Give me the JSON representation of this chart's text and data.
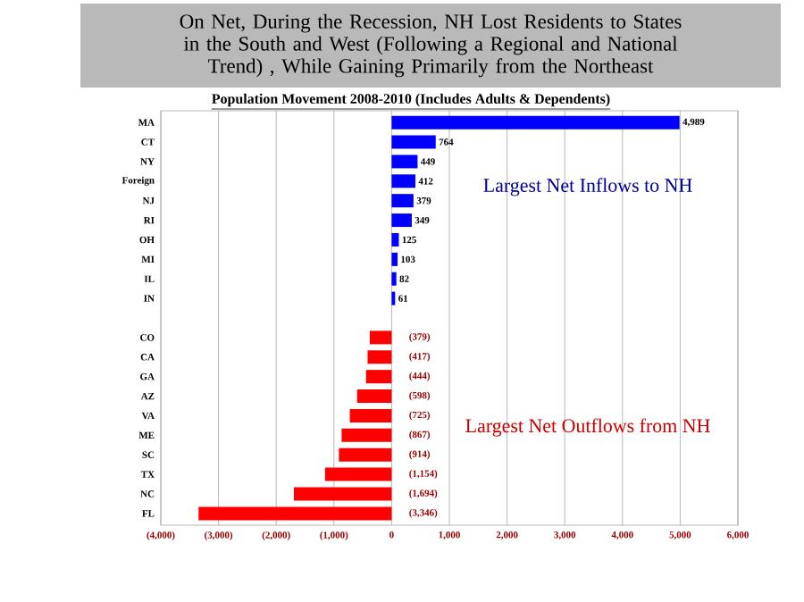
{
  "chart_data": {
    "type": "bar",
    "orientation": "horizontal",
    "title": "On Net, During the Recession, NH Lost Residents to States in the South and West (Following a Regional and National Trend) , While Gaining Primarily from the Northeast",
    "subtitle": "Population Movement 2008-2010 (Includes Adults & Dependents)",
    "categories": [
      "MA",
      "CT",
      "NY",
      "Foreign",
      "NJ",
      "RI",
      "OH",
      "MI",
      "IL",
      "IN",
      null,
      "CO",
      "CA",
      "GA",
      "AZ",
      "VA",
      "ME",
      "SC",
      "TX",
      "NC",
      "FL"
    ],
    "values": [
      4989,
      764,
      449,
      412,
      379,
      349,
      125,
      103,
      82,
      61,
      null,
      -379,
      -417,
      -444,
      -598,
      -725,
      -867,
      -914,
      -1154,
      -1694,
      -3346
    ],
    "value_labels": [
      "4,989",
      "764",
      "449",
      "412",
      "379",
      "349",
      "125",
      "103",
      "82",
      "61",
      null,
      "(379)",
      "(417)",
      "(444)",
      "(598)",
      "(725)",
      "(867)",
      "(914)",
      "(1,154)",
      "(1,694)",
      "(3,346)"
    ],
    "colors": [
      "#0000ff",
      "#0000ff",
      "#0000ff",
      "#0000ff",
      "#0000ff",
      "#0000ff",
      "#0000ff",
      "#0000ff",
      "#0000ff",
      "#0000ff",
      null,
      "#ff0000",
      "#ff0000",
      "#ff0000",
      "#ff0000",
      "#ff0000",
      "#ff0000",
      "#ff0000",
      "#ff0000",
      "#ff0000",
      "#ff0000"
    ],
    "xlim": [
      -4000,
      6000
    ],
    "xticks": [
      {
        "value": -4000,
        "label": "(4,000)"
      },
      {
        "value": -3000,
        "label": "(3,000)"
      },
      {
        "value": -2000,
        "label": "(2,000)"
      },
      {
        "value": -1000,
        "label": "(1,000)"
      },
      0,
      {
        "value": 1000,
        "label": "1,000"
      },
      {
        "value": 2000,
        "label": "2,000"
      },
      {
        "value": 3000,
        "label": "3,000"
      },
      {
        "value": 4000,
        "label": "4,000"
      },
      {
        "value": 5000,
        "label": "5,000"
      },
      {
        "value": 6000,
        "label": "6,000"
      }
    ],
    "grid": "x",
    "annotations": [
      "Largest Net Inflows to NH",
      "Largest Net Outflows from NH"
    ]
  }
}
